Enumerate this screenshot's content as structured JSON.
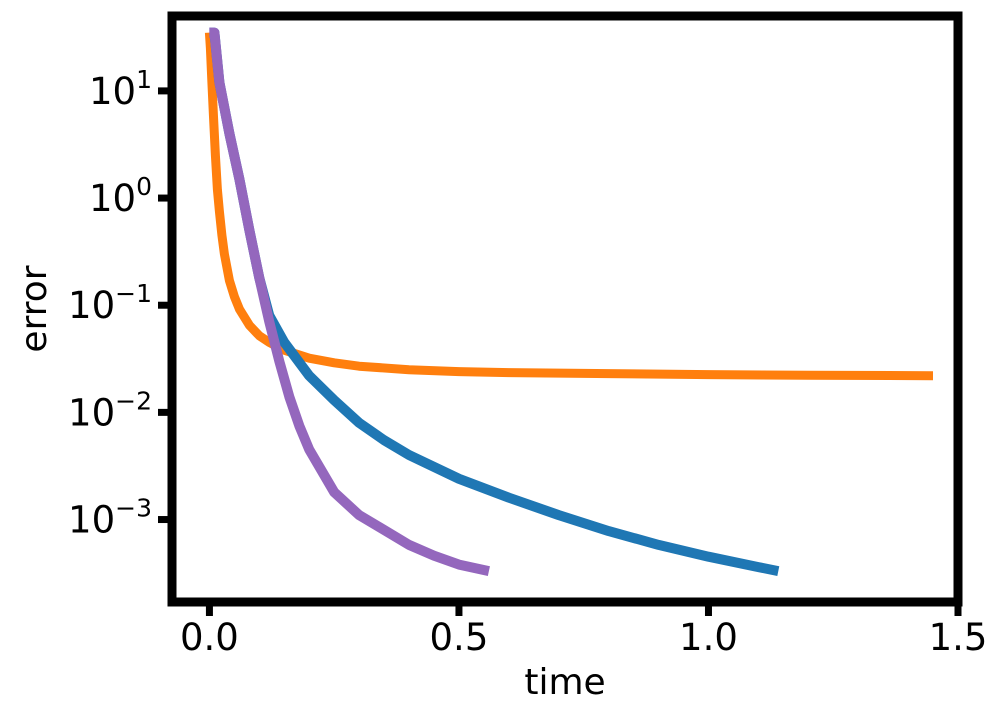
{
  "chart_data": {
    "type": "line",
    "title": "",
    "xlabel": "time",
    "ylabel": "error",
    "xlim": [
      -0.075,
      1.5
    ],
    "ylim": [
      0.00017,
      50
    ],
    "yscale": "log",
    "grid": false,
    "legend": "none",
    "x_ticks": [
      {
        "value": 0.0,
        "label": "0.0"
      },
      {
        "value": 0.5,
        "label": "0.5"
      },
      {
        "value": 1.0,
        "label": "1.0"
      },
      {
        "value": 1.5,
        "label": "1.5"
      }
    ],
    "y_ticks": [
      {
        "value": 10,
        "base": "10",
        "exp": "1"
      },
      {
        "value": 1,
        "base": "10",
        "exp": "0"
      },
      {
        "value": 0.1,
        "base": "10",
        "exp": "−1"
      },
      {
        "value": 0.01,
        "base": "10",
        "exp": "−2"
      },
      {
        "value": 0.001,
        "base": "10",
        "exp": "−3"
      }
    ],
    "series": [
      {
        "color": "#ff7f0e",
        "stroke": 9,
        "points": [
          [
            0.0,
            35
          ],
          [
            0.002,
            25
          ],
          [
            0.005,
            12
          ],
          [
            0.008,
            6
          ],
          [
            0.012,
            2.5
          ],
          [
            0.016,
            1.2
          ],
          [
            0.02,
            0.75
          ],
          [
            0.025,
            0.45
          ],
          [
            0.03,
            0.3
          ],
          [
            0.04,
            0.17
          ],
          [
            0.05,
            0.12
          ],
          [
            0.06,
            0.092
          ],
          [
            0.08,
            0.065
          ],
          [
            0.1,
            0.052
          ],
          [
            0.12,
            0.045
          ],
          [
            0.15,
            0.038
          ],
          [
            0.2,
            0.032
          ],
          [
            0.25,
            0.029
          ],
          [
            0.3,
            0.027
          ],
          [
            0.4,
            0.025
          ],
          [
            0.5,
            0.024
          ],
          [
            0.6,
            0.0235
          ],
          [
            0.8,
            0.023
          ],
          [
            1.0,
            0.0225
          ],
          [
            1.2,
            0.0222
          ],
          [
            1.45,
            0.022
          ]
        ]
      },
      {
        "color": "#1f77b4",
        "stroke": 10,
        "points": [
          [
            0.0,
            35
          ],
          [
            0.01,
            35
          ],
          [
            0.02,
            12
          ],
          [
            0.04,
            4
          ],
          [
            0.06,
            1.5
          ],
          [
            0.08,
            0.5
          ],
          [
            0.1,
            0.18
          ],
          [
            0.12,
            0.08
          ],
          [
            0.15,
            0.045
          ],
          [
            0.2,
            0.022
          ],
          [
            0.25,
            0.013
          ],
          [
            0.3,
            0.008
          ],
          [
            0.35,
            0.0055
          ],
          [
            0.4,
            0.004
          ],
          [
            0.5,
            0.0024
          ],
          [
            0.6,
            0.0016
          ],
          [
            0.7,
            0.0011
          ],
          [
            0.8,
            0.00078
          ],
          [
            0.9,
            0.00058
          ],
          [
            1.0,
            0.00045
          ],
          [
            1.1,
            0.00036
          ],
          [
            1.14,
            0.00033
          ]
        ]
      },
      {
        "color": "#9467bd",
        "stroke": 10,
        "points": [
          [
            0.0,
            35
          ],
          [
            0.01,
            35
          ],
          [
            0.02,
            12
          ],
          [
            0.04,
            4
          ],
          [
            0.06,
            1.5
          ],
          [
            0.08,
            0.5
          ],
          [
            0.1,
            0.18
          ],
          [
            0.12,
            0.07
          ],
          [
            0.14,
            0.03
          ],
          [
            0.16,
            0.014
          ],
          [
            0.18,
            0.0075
          ],
          [
            0.2,
            0.0045
          ],
          [
            0.25,
            0.0018
          ],
          [
            0.3,
            0.0011
          ],
          [
            0.35,
            0.0008
          ],
          [
            0.4,
            0.00058
          ],
          [
            0.45,
            0.00046
          ],
          [
            0.5,
            0.00038
          ],
          [
            0.56,
            0.00033
          ]
        ]
      }
    ]
  }
}
